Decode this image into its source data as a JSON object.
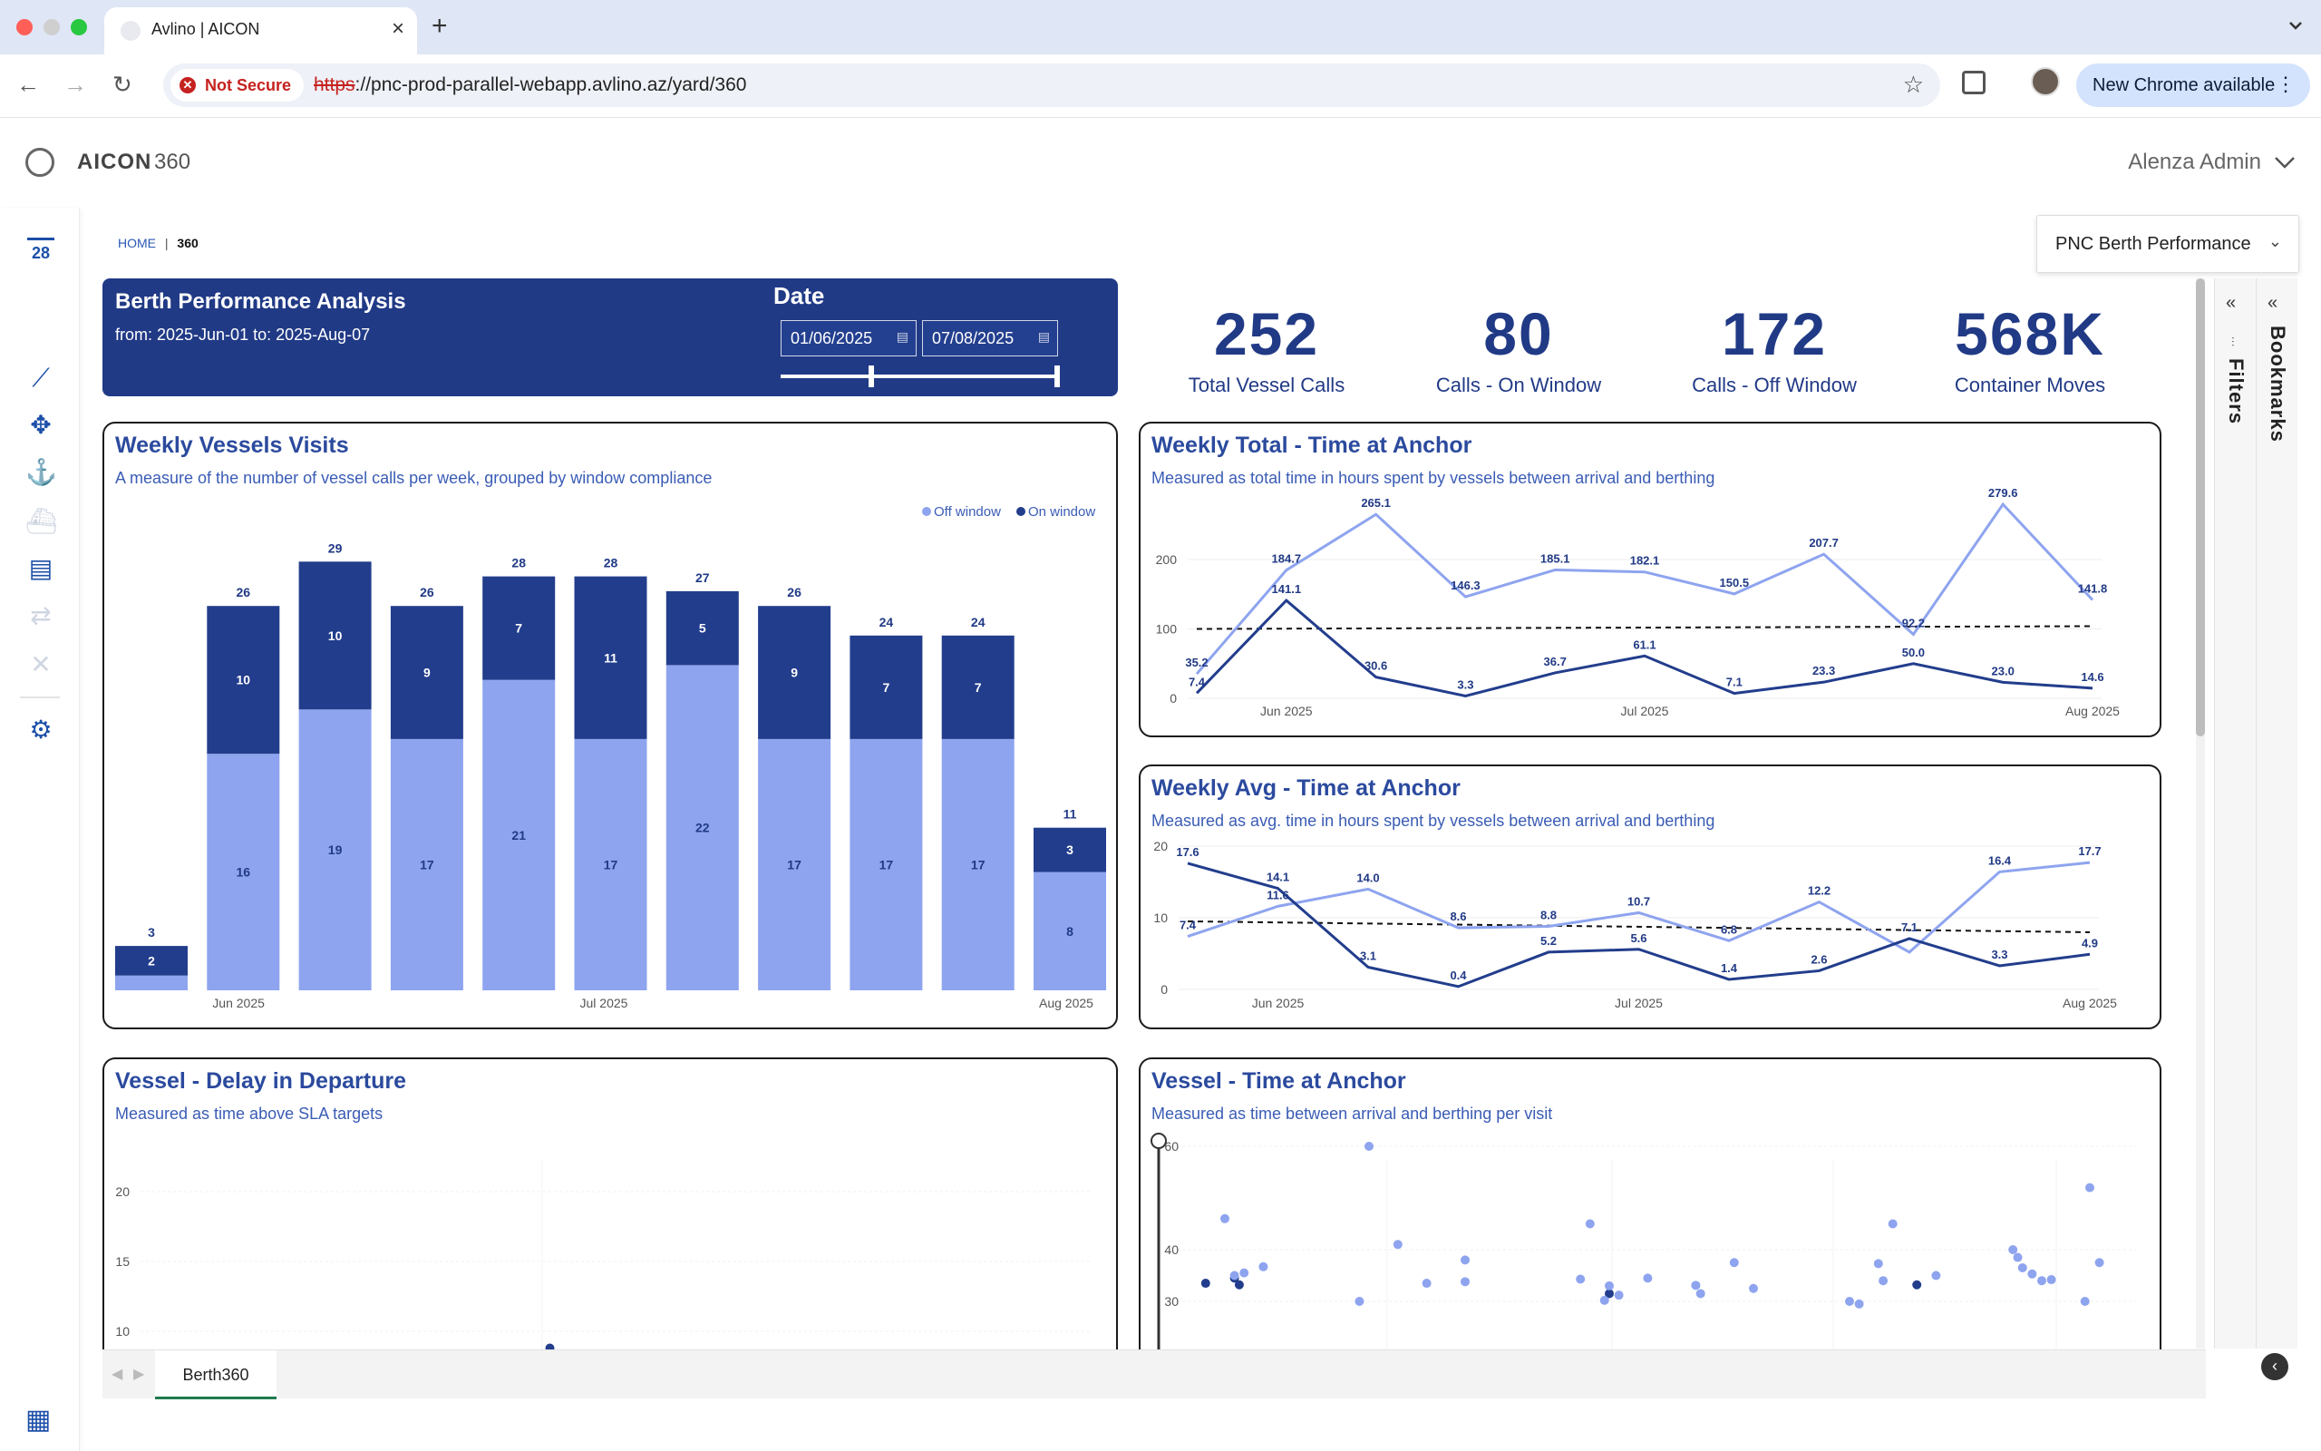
{
  "browser": {
    "tab_title": "Avlino | AICON",
    "url_proto": "https",
    "url_rest": "://pnc-prod-parallel-webapp.avlino.az/yard/360",
    "security_label": "Not Secure",
    "update_button": "New Chrome available"
  },
  "app": {
    "name": "AICON",
    "sub": "360",
    "user": "Alenza Admin"
  },
  "rail": {
    "calendar_day": "28"
  },
  "breadcrumb": {
    "home": "HOME",
    "sep": "|",
    "current": "360"
  },
  "bookmark_select": {
    "value": "PNC Berth Performance"
  },
  "banner": {
    "title": "Berth Performance Analysis",
    "subtitle": "from: 2025-Jun-01  to: 2025-Aug-07",
    "date_label": "Date",
    "date_from": "01/06/2025",
    "date_to": "07/08/2025"
  },
  "kpis": [
    {
      "value": "252",
      "label": "Total Vessel Calls"
    },
    {
      "value": "80",
      "label": "Calls - On Window"
    },
    {
      "value": "172",
      "label": "Calls - Off Window"
    },
    {
      "value": "568K",
      "label": "Container Moves"
    }
  ],
  "panels": {
    "weekly_visits": {
      "title": "Weekly Vessels Visits",
      "subtitle": "A measure of the number of vessel calls per week, grouped by window compliance"
    },
    "weekly_total": {
      "title": "Weekly Total - Time at Anchor",
      "subtitle": "Measured as total time in hours spent by vessels between arrival and berthing"
    },
    "weekly_avg": {
      "title": "Weekly Avg - Time at Anchor",
      "subtitle": "Measured as avg. time in hours spent by vessels between arrival and berthing"
    },
    "delay_departure": {
      "title": "Vessel - Delay in Departure",
      "subtitle": "Measured as time above SLA targets"
    },
    "time_anchor": {
      "title": "Vessel - Time at Anchor",
      "subtitle": "Measured as time between arrival and berthing per visit"
    }
  },
  "panes": {
    "filters": "Filters",
    "bookmarks": "Bookmarks"
  },
  "sheet_tab": "Berth360",
  "colors": {
    "navy": "#213a86",
    "dark_series": "#223d8c",
    "light_series": "#8ea4ef"
  },
  "chart_data": [
    {
      "type": "bar",
      "stacked": true,
      "legend": {
        "position": "top-right",
        "entries": [
          "Off window",
          "On window"
        ]
      },
      "categories": [
        "w1",
        "w2",
        "w3",
        "w4",
        "w5",
        "w6",
        "w7",
        "w8",
        "w9",
        "w10",
        "w11"
      ],
      "x_tick_labels": [
        {
          "label": "Jun 2025",
          "index": 1
        },
        {
          "label": "Jul 2025",
          "index": 5
        },
        {
          "label": "Aug 2025",
          "index": 10
        }
      ],
      "series": [
        {
          "name": "Off window",
          "values": [
            1,
            16,
            19,
            17,
            21,
            17,
            22,
            17,
            17,
            17,
            8
          ]
        },
        {
          "name": "On window",
          "values": [
            2,
            10,
            10,
            9,
            7,
            11,
            5,
            9,
            7,
            7,
            3
          ]
        }
      ],
      "totals": [
        3,
        26,
        29,
        26,
        28,
        28,
        27,
        26,
        24,
        24,
        11
      ],
      "segment_labels_off": [
        "",
        "16",
        "19",
        "17",
        "21",
        "17",
        "22",
        "17",
        "17",
        "17",
        "8"
      ],
      "ylim": [
        0,
        30
      ]
    },
    {
      "type": "line",
      "x_tick_labels": [
        {
          "label": "Jun 2025",
          "index": 1
        },
        {
          "label": "Jul 2025",
          "index": 5
        },
        {
          "label": "Aug 2025",
          "index": 10
        }
      ],
      "yticks": [
        0,
        100,
        200
      ],
      "ylim": [
        0,
        280
      ],
      "reference_line": 100,
      "series": [
        {
          "name": "Off window",
          "values": [
            35.2,
            184.7,
            265.1,
            146.3,
            185.1,
            182.1,
            150.5,
            207.7,
            92.2,
            279.6,
            141.8
          ]
        },
        {
          "name": "On window",
          "values": [
            7.4,
            141.1,
            30.6,
            3.3,
            36.7,
            61.1,
            7.1,
            23.3,
            50.0,
            23.0,
            14.6
          ]
        }
      ],
      "labels_off": [
        "35.2",
        "184.7",
        "265.1",
        "146.3",
        "185.1",
        "182.1",
        "150.5",
        "207.7",
        "92.2",
        "279.6",
        "141.8"
      ],
      "labels_on": [
        "7.4",
        "141.1",
        "30.6",
        "3.3",
        "36.7",
        "61.1",
        "7.1",
        "23.3",
        "50.0",
        "23.0",
        "14.6"
      ]
    },
    {
      "type": "line",
      "x_tick_labels": [
        {
          "label": "Jun 2025",
          "index": 1
        },
        {
          "label": "Jul 2025",
          "index": 5
        },
        {
          "label": "Aug 2025",
          "index": 10
        }
      ],
      "yticks": [
        0,
        10,
        20
      ],
      "ylim": [
        0,
        20
      ],
      "reference_line": 9.5,
      "series": [
        {
          "name": "Off window",
          "values": [
            7.4,
            11.6,
            14.0,
            8.6,
            8.8,
            10.7,
            6.8,
            12.2,
            5.2,
            16.4,
            17.7
          ]
        },
        {
          "name": "On window",
          "values": [
            17.6,
            14.1,
            3.1,
            0.4,
            5.2,
            5.6,
            1.4,
            2.6,
            7.1,
            3.3,
            4.9
          ]
        }
      ],
      "labels_off": [
        "7.4",
        "11.6",
        "14.0",
        "8.6",
        "8.8",
        "10.7",
        "6.8",
        "12.2",
        "",
        "16.4",
        "17.7"
      ],
      "labels_on": [
        "17.6",
        "14.1",
        "3.1",
        "0.4",
        "5.2",
        "5.6",
        "1.4",
        "2.6",
        "7.1",
        "3.3",
        "4.9"
      ]
    },
    {
      "type": "scatter",
      "yticks": [
        10,
        15,
        20
      ],
      "ylim": [
        8,
        24
      ],
      "points": [
        {
          "x": 0.43,
          "y": 8.8
        }
      ]
    },
    {
      "type": "scatter",
      "yticks": [
        30,
        40,
        60
      ],
      "ylim": [
        28,
        60
      ],
      "points": [
        {
          "x": 0.03,
          "y": 33.5,
          "s": "on"
        },
        {
          "x": 0.05,
          "y": 46,
          "s": "off"
        },
        {
          "x": 0.06,
          "y": 34.5,
          "s": "on"
        },
        {
          "x": 0.065,
          "y": 33.2,
          "s": "on"
        },
        {
          "x": 0.07,
          "y": 35.5,
          "s": "off"
        },
        {
          "x": 0.06,
          "y": 35,
          "s": "off"
        },
        {
          "x": 0.09,
          "y": 36.7,
          "s": "off"
        },
        {
          "x": 0.2,
          "y": 60,
          "s": "off"
        },
        {
          "x": 0.19,
          "y": 30,
          "s": "off"
        },
        {
          "x": 0.23,
          "y": 41,
          "s": "off"
        },
        {
          "x": 0.26,
          "y": 33.5,
          "s": "off"
        },
        {
          "x": 0.3,
          "y": 38,
          "s": "off"
        },
        {
          "x": 0.3,
          "y": 33.8,
          "s": "off"
        },
        {
          "x": 0.42,
          "y": 34.3,
          "s": "off"
        },
        {
          "x": 0.43,
          "y": 45,
          "s": "off"
        },
        {
          "x": 0.45,
          "y": 31.5,
          "s": "on"
        },
        {
          "x": 0.45,
          "y": 33,
          "s": "off"
        },
        {
          "x": 0.445,
          "y": 30.2,
          "s": "off"
        },
        {
          "x": 0.46,
          "y": 31.2,
          "s": "off"
        },
        {
          "x": 0.49,
          "y": 34.5,
          "s": "off"
        },
        {
          "x": 0.54,
          "y": 33.1,
          "s": "off"
        },
        {
          "x": 0.545,
          "y": 31.5,
          "s": "off"
        },
        {
          "x": 0.58,
          "y": 37.5,
          "s": "off"
        },
        {
          "x": 0.6,
          "y": 32.5,
          "s": "off"
        },
        {
          "x": 0.7,
          "y": 30,
          "s": "off"
        },
        {
          "x": 0.71,
          "y": 29.5,
          "s": "off"
        },
        {
          "x": 0.73,
          "y": 37.3,
          "s": "off"
        },
        {
          "x": 0.735,
          "y": 34,
          "s": "off"
        },
        {
          "x": 0.745,
          "y": 45,
          "s": "off"
        },
        {
          "x": 0.77,
          "y": 33.2,
          "s": "on"
        },
        {
          "x": 0.79,
          "y": 35,
          "s": "off"
        },
        {
          "x": 0.87,
          "y": 40,
          "s": "off"
        },
        {
          "x": 0.875,
          "y": 38.5,
          "s": "off"
        },
        {
          "x": 0.88,
          "y": 36.5,
          "s": "off"
        },
        {
          "x": 0.89,
          "y": 35.3,
          "s": "off"
        },
        {
          "x": 0.9,
          "y": 34,
          "s": "off"
        },
        {
          "x": 0.91,
          "y": 34.2,
          "s": "off"
        },
        {
          "x": 0.95,
          "y": 52,
          "s": "off"
        },
        {
          "x": 0.96,
          "y": 37.5,
          "s": "off"
        },
        {
          "x": 0.945,
          "y": 30,
          "s": "off"
        }
      ]
    }
  ]
}
